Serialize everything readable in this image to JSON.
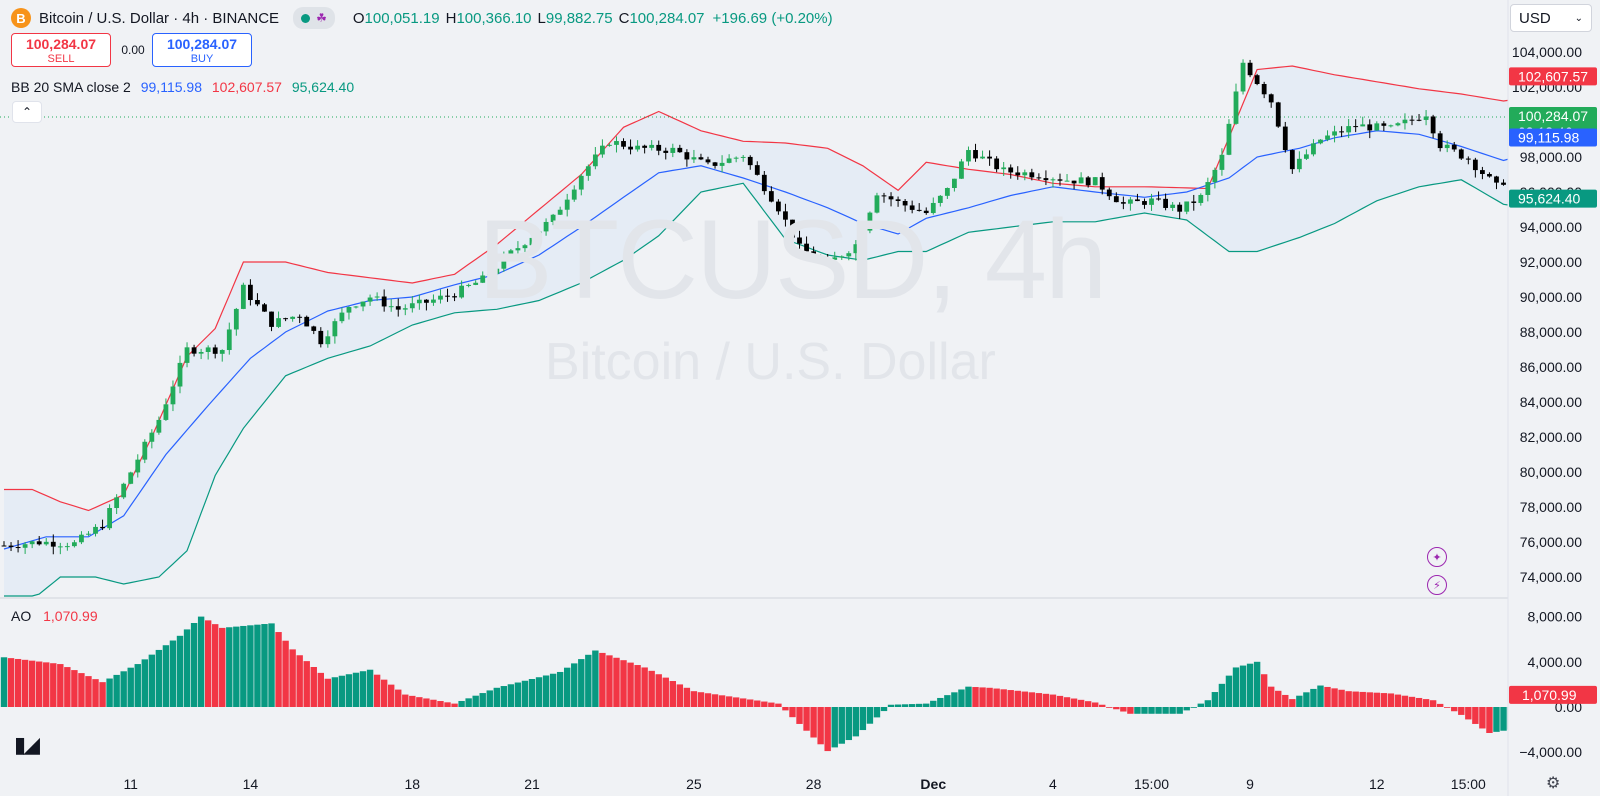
{
  "header": {
    "symbol_icon": "B",
    "title": "Bitcoin / U.S. Dollar · 4h · BINANCE",
    "ohlc": [
      {
        "k": "O",
        "v": "100,051.19"
      },
      {
        "k": "H",
        "v": "100,366.10"
      },
      {
        "k": "L",
        "v": "99,882.75"
      },
      {
        "k": "C",
        "v": "100,284.07"
      }
    ],
    "change": "+196.69 (+0.20%)"
  },
  "trade": {
    "sell_price": "100,284.07",
    "sell_label": "SELL",
    "spread": "0.00",
    "buy_price": "100,284.07",
    "buy_label": "BUY"
  },
  "bb_legend": {
    "label": "BB 20 SMA close 2",
    "basis": "99,115.98",
    "upper": "102,607.57",
    "lower": "95,624.40"
  },
  "ao_legend": {
    "label": "AO",
    "value": "1,070.99"
  },
  "currency": "USD",
  "watermark": {
    "line1": "BTCUSD, 4h",
    "line2": "Bitcoin / U.S. Dollar"
  },
  "colors": {
    "up": "#089981",
    "down": "#f23645",
    "candle_up": "#22ab5a",
    "candle_down": "#000000",
    "bb_upper": "#f23645",
    "bb_basis": "#2962ff",
    "bb_lower": "#089981",
    "bb_fill": "#e3ebf5"
  },
  "chart_data": [
    {
      "type": "candlestick",
      "title": "Bitcoin / U.S. Dollar · 4h · BINANCE",
      "y_ticks": [
        "104,000.00",
        "102,000.00",
        "100,000.00",
        "98,000.00",
        "96,000.00",
        "94,000.00",
        "92,000.00",
        "90,000.00",
        "88,000.00",
        "86,000.00",
        "84,000.00",
        "82,000.00",
        "80,000.00",
        "78,000.00",
        "76,000.00",
        "74,000.00"
      ],
      "x_ticks": [
        "11",
        "14",
        "18",
        "21",
        "25",
        "28",
        "Dec",
        "4",
        "15:00",
        "9",
        "12",
        "15:00"
      ],
      "ylim": [
        73000,
        104500
      ],
      "price_labels": [
        {
          "text": "102,607.57",
          "value": 102607.57,
          "color": "#f23645"
        },
        {
          "text": "100,284.07",
          "sub": "03:18:46",
          "value": 100284.07,
          "color": "#22ab5a"
        },
        {
          "text": "99,115.98",
          "value": 99115.98,
          "color": "#2962ff"
        },
        {
          "text": "95,624.40",
          "value": 95624.4,
          "color": "#089981"
        }
      ],
      "bb_upper": [
        [
          0,
          79000
        ],
        [
          4,
          79000
        ],
        [
          8,
          78300
        ],
        [
          12,
          77800
        ],
        [
          17,
          78700
        ],
        [
          21,
          82000
        ],
        [
          26,
          86600
        ],
        [
          30,
          88200
        ],
        [
          34,
          92000
        ],
        [
          40,
          92000
        ],
        [
          46,
          91400
        ],
        [
          52,
          91100
        ],
        [
          58,
          90800
        ],
        [
          64,
          91300
        ],
        [
          70,
          93000
        ],
        [
          76,
          95000
        ],
        [
          82,
          97000
        ],
        [
          88,
          99700
        ],
        [
          93,
          100600
        ],
        [
          99,
          99500
        ],
        [
          105,
          98900
        ],
        [
          111,
          98800
        ],
        [
          117,
          98500
        ],
        [
          122,
          97500
        ],
        [
          127,
          96100
        ],
        [
          131,
          97700
        ],
        [
          137,
          97300
        ],
        [
          143,
          97000
        ],
        [
          149,
          96500
        ],
        [
          155,
          96300
        ],
        [
          162,
          96300
        ],
        [
          171,
          96200
        ],
        [
          178,
          103000
        ],
        [
          183,
          103200
        ],
        [
          189,
          102700
        ],
        [
          195,
          102300
        ],
        [
          201,
          101900
        ],
        [
          207,
          101600
        ],
        [
          213,
          101200
        ],
        [
          218,
          101500
        ],
        [
          223,
          102300
        ],
        [
          227,
          102600
        ]
      ],
      "bb_basis": [
        [
          0,
          75600
        ],
        [
          6,
          76300
        ],
        [
          12,
          76300
        ],
        [
          17,
          77500
        ],
        [
          23,
          81000
        ],
        [
          29,
          83800
        ],
        [
          35,
          86500
        ],
        [
          40,
          88000
        ],
        [
          46,
          89200
        ],
        [
          52,
          89800
        ],
        [
          58,
          90000
        ],
        [
          64,
          90700
        ],
        [
          70,
          91300
        ],
        [
          76,
          92400
        ],
        [
          82,
          94000
        ],
        [
          88,
          95700
        ],
        [
          93,
          97100
        ],
        [
          99,
          97500
        ],
        [
          105,
          96800
        ],
        [
          111,
          96000
        ],
        [
          117,
          95100
        ],
        [
          122,
          94200
        ],
        [
          127,
          93600
        ],
        [
          131,
          94500
        ],
        [
          137,
          95100
        ],
        [
          143,
          95800
        ],
        [
          149,
          96300
        ],
        [
          155,
          96000
        ],
        [
          162,
          95700
        ],
        [
          168,
          96000
        ],
        [
          174,
          96800
        ],
        [
          178,
          98000
        ],
        [
          184,
          98500
        ],
        [
          189,
          99100
        ],
        [
          195,
          99500
        ],
        [
          201,
          99300
        ],
        [
          207,
          98600
        ],
        [
          213,
          97800
        ],
        [
          219,
          98500
        ],
        [
          227,
          99100
        ]
      ],
      "bb_lower": [
        [
          0,
          72500
        ],
        [
          4,
          72700
        ],
        [
          8,
          74000
        ],
        [
          13,
          74000
        ],
        [
          17,
          73600
        ],
        [
          22,
          74000
        ],
        [
          26,
          75500
        ],
        [
          30,
          79800
        ],
        [
          34,
          82500
        ],
        [
          40,
          85500
        ],
        [
          46,
          86500
        ],
        [
          52,
          87200
        ],
        [
          58,
          88400
        ],
        [
          64,
          89100
        ],
        [
          70,
          89300
        ],
        [
          76,
          89800
        ],
        [
          82,
          90800
        ],
        [
          88,
          92100
        ],
        [
          93,
          93500
        ],
        [
          99,
          96000
        ],
        [
          105,
          96500
        ],
        [
          111,
          93300
        ],
        [
          117,
          92400
        ],
        [
          122,
          92100
        ],
        [
          127,
          92600
        ],
        [
          131,
          92600
        ],
        [
          137,
          93700
        ],
        [
          143,
          94000
        ],
        [
          149,
          94300
        ],
        [
          155,
          94300
        ],
        [
          162,
          94800
        ],
        [
          168,
          94400
        ],
        [
          174,
          92600
        ],
        [
          178,
          92600
        ],
        [
          184,
          93400
        ],
        [
          189,
          94200
        ],
        [
          195,
          95500
        ],
        [
          201,
          96300
        ],
        [
          207,
          96700
        ],
        [
          213,
          95300
        ],
        [
          219,
          94900
        ],
        [
          227,
          95400
        ]
      ],
      "candles_anchor": [
        [
          0,
          75800
        ],
        [
          5,
          76000
        ],
        [
          10,
          75900
        ],
        [
          14,
          77000
        ],
        [
          18,
          80000
        ],
        [
          22,
          83000
        ],
        [
          26,
          87000
        ],
        [
          31,
          87000
        ],
        [
          34,
          90500
        ],
        [
          38,
          88500
        ],
        [
          42,
          89000
        ],
        [
          45,
          87500
        ],
        [
          49,
          89500
        ],
        [
          52,
          90000
        ],
        [
          56,
          89300
        ],
        [
          60,
          89700
        ],
        [
          64,
          90200
        ],
        [
          68,
          91000
        ],
        [
          72,
          92500
        ],
        [
          78,
          94500
        ],
        [
          82,
          97000
        ],
        [
          86,
          98900
        ],
        [
          90,
          98500
        ],
        [
          95,
          98400
        ],
        [
          100,
          97500
        ],
        [
          105,
          98100
        ],
        [
          110,
          95100
        ],
        [
          113,
          92800
        ],
        [
          117,
          91900
        ],
        [
          121,
          93000
        ],
        [
          124,
          96000
        ],
        [
          127,
          95400
        ],
        [
          131,
          94800
        ],
        [
          134,
          96100
        ],
        [
          137,
          98400
        ],
        [
          142,
          97200
        ],
        [
          147,
          97000
        ],
        [
          151,
          96700
        ],
        [
          155,
          96600
        ],
        [
          159,
          95300
        ],
        [
          163,
          95500
        ],
        [
          167,
          95000
        ],
        [
          170,
          95700
        ],
        [
          173,
          98000
        ],
        [
          176,
          103400
        ],
        [
          180,
          101200
        ],
        [
          183,
          97300
        ],
        [
          187,
          99000
        ],
        [
          192,
          99800
        ],
        [
          197,
          99600
        ],
        [
          202,
          100500
        ],
        [
          204,
          98700
        ],
        [
          208,
          97900
        ],
        [
          212,
          96300
        ],
        [
          216,
          97600
        ],
        [
          219,
          99000
        ],
        [
          223,
          100800
        ],
        [
          225,
          100000
        ],
        [
          227,
          100300
        ]
      ]
    },
    {
      "type": "bar",
      "title": "AO",
      "value_label": "1,070.99",
      "y_ticks": [
        "8,000.00",
        "4,000.00",
        "0.00",
        "−4,000.00"
      ],
      "ylim": [
        -5500,
        9000
      ],
      "anchors": [
        [
          0,
          4400
        ],
        [
          8,
          3800
        ],
        [
          14,
          2200
        ],
        [
          19,
          3800
        ],
        [
          25,
          6300
        ],
        [
          28,
          8000
        ],
        [
          31,
          7000
        ],
        [
          38,
          7400
        ],
        [
          41,
          5100
        ],
        [
          46,
          2500
        ],
        [
          52,
          3300
        ],
        [
          57,
          1100
        ],
        [
          64,
          300
        ],
        [
          70,
          1700
        ],
        [
          79,
          3100
        ],
        [
          84,
          5000
        ],
        [
          91,
          3500
        ],
        [
          98,
          1400
        ],
        [
          110,
          300
        ],
        [
          117,
          -3900
        ],
        [
          121,
          -2600
        ],
        [
          126,
          200
        ],
        [
          131,
          300
        ],
        [
          137,
          1800
        ],
        [
          140,
          1700
        ],
        [
          149,
          1100
        ],
        [
          155,
          400
        ],
        [
          160,
          -600
        ],
        [
          167,
          -600
        ],
        [
          171,
          600
        ],
        [
          175,
          3500
        ],
        [
          178,
          4000
        ],
        [
          180,
          1800
        ],
        [
          183,
          700
        ],
        [
          187,
          1900
        ],
        [
          191,
          1400
        ],
        [
          197,
          1200
        ],
        [
          203,
          600
        ],
        [
          207,
          -700
        ],
        [
          211,
          -2300
        ],
        [
          216,
          -1800
        ],
        [
          220,
          600
        ],
        [
          224,
          2000
        ],
        [
          227,
          1070
        ]
      ]
    }
  ]
}
